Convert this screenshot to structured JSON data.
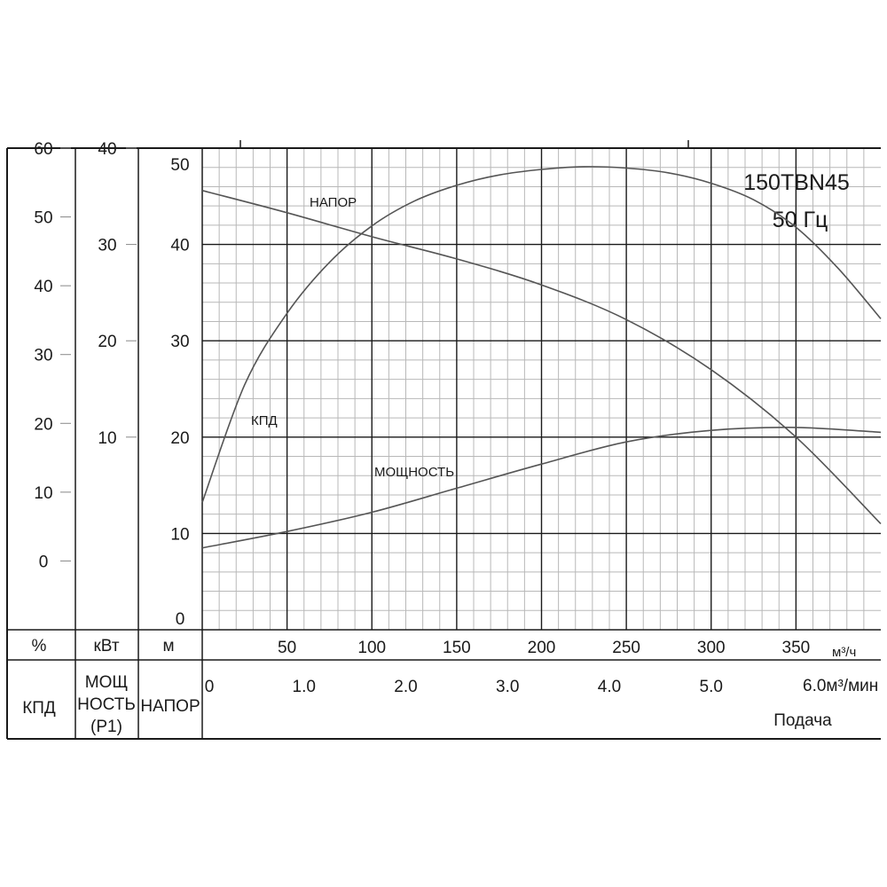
{
  "chart_data": {
    "type": "line",
    "title": "150TBN45",
    "subtitle": "50 Гц",
    "x_axis": {
      "unit_m3h": "м³/ч",
      "ticks_m3h": [
        50,
        100,
        150,
        200,
        250,
        300,
        350
      ],
      "unit_m3min": "6.0м³/мин",
      "ticks_m3min": [
        "0",
        "1.0",
        "2.0",
        "3.0",
        "4.0",
        "5.0"
      ],
      "label": "Подача",
      "xlim_m3h": [
        0,
        400
      ]
    },
    "y_axes": {
      "head": {
        "unit": "м",
        "label": "НАПОР",
        "ticks": [
          "50",
          "40",
          "30",
          "20",
          "10",
          "0"
        ],
        "ylim": [
          0,
          50
        ]
      },
      "power": {
        "unit": "кВт",
        "label_line1": "МОЩ",
        "label_line2": "НОСТЬ",
        "label_line3": "(P1)",
        "ticks": [
          "40",
          "30",
          "20",
          "10"
        ],
        "ylim": [
          -10,
          40
        ]
      },
      "efficiency": {
        "unit": "%",
        "label": "КПД",
        "ticks": [
          "60",
          "50",
          "40",
          "30",
          "20",
          "10",
          "0"
        ],
        "ylim": [
          -10,
          60
        ]
      }
    },
    "series": [
      {
        "name": "НАПОР",
        "axis": "head",
        "x": [
          0,
          50,
          100,
          150,
          200,
          250,
          300,
          350,
          400
        ],
        "y": [
          45.6,
          43.3,
          40.8,
          38.5,
          35.8,
          32.2,
          27.0,
          20.0,
          11.0
        ]
      },
      {
        "name": "КПД",
        "axis": "efficiency",
        "x": [
          0,
          25,
          50,
          75,
          100,
          125,
          150,
          175,
          200,
          225,
          250,
          275,
          300,
          325,
          350,
          375,
          400
        ],
        "y": [
          8.5,
          25.6,
          36.0,
          43.4,
          48.7,
          52.3,
          54.6,
          56.1,
          56.9,
          57.3,
          57.1,
          56.4,
          54.9,
          52.5,
          48.5,
          42.5,
          35.2
        ]
      },
      {
        "name": "МОЩНОСТЬ",
        "axis": "power",
        "x": [
          0,
          50,
          100,
          150,
          200,
          250,
          300,
          350,
          400
        ],
        "y": [
          -1.5,
          0.2,
          2.2,
          4.7,
          7.2,
          9.5,
          10.7,
          11.0,
          10.5
        ]
      }
    ]
  }
}
